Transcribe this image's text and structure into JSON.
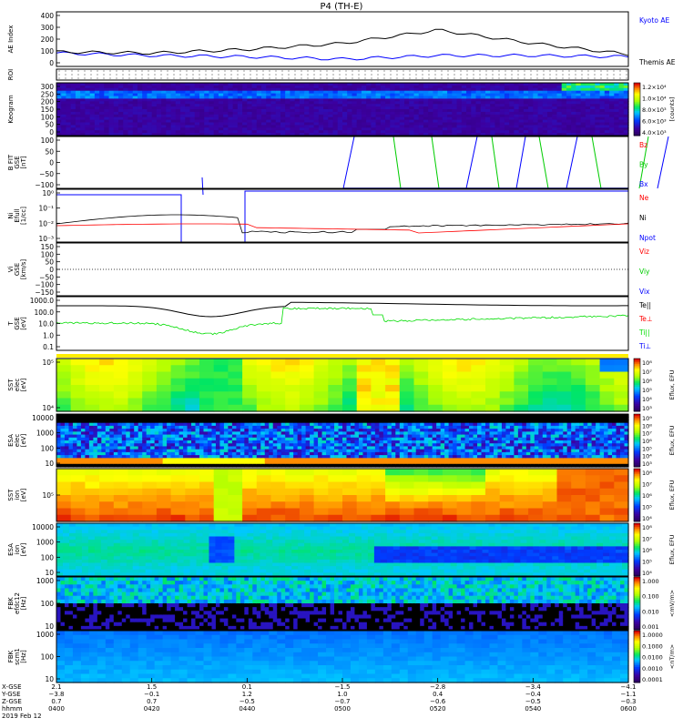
{
  "title": "P4 (TH-E)",
  "colors": {
    "kyoto": "#0000ff",
    "themis": "#000000",
    "bz": "#ff0000",
    "by": "#00cc00",
    "bx": "#0000ff",
    "te_perp": "#ff0000",
    "ti": "#00dd00",
    "ti_perp": "#0000ff"
  },
  "panels": [
    {
      "id": "ae",
      "ylabel": "AE Index",
      "yticks": [
        "400",
        "300",
        "200",
        "100",
        "0"
      ],
      "legend": [
        "Kyoto AE",
        "Themis AE"
      ]
    },
    {
      "id": "roi",
      "ylabel": "ROI",
      "yticks": [],
      "legend": []
    },
    {
      "id": "keogram",
      "ylabel": "Keogram",
      "yticks": [
        "300",
        "250",
        "200",
        "150",
        "100",
        "50",
        "0"
      ],
      "legend": [],
      "colorbar": {
        "labels": [
          "1.2×10⁴",
          "1.0×10⁴",
          "8.0×10³",
          "6.0×10³",
          "4.0×10³"
        ],
        "title": "[counts]"
      }
    },
    {
      "id": "bfield",
      "ylabel": "B FIT\nGSE\n[nT]",
      "yticks": [
        "100",
        "50",
        "0",
        "−50",
        "−100"
      ],
      "legend": [
        "Bz",
        "By",
        "Bx"
      ]
    },
    {
      "id": "density",
      "ylabel": "Ni\nEfull\n[1/cc]",
      "yticks": [
        "10⁰",
        "10⁻¹",
        "10⁻²",
        "10⁻³"
      ],
      "legend": [
        "Ne",
        "Ni",
        "Npot"
      ]
    },
    {
      "id": "velocity",
      "ylabel": "Vi\nGSE\n[km/s]",
      "yticks": [
        "150",
        "100",
        "50",
        "0",
        "−50",
        "−100",
        "−150"
      ],
      "legend": [
        "Viz",
        "Viy",
        "Vix"
      ]
    },
    {
      "id": "temp",
      "ylabel": "T\nGSE\n[eV]",
      "yticks": [
        "1000.0",
        "100.0",
        "10.0",
        "1.0",
        "0.1"
      ],
      "legend": [
        "Te||",
        "Te⊥",
        "Ti||",
        "Ti⊥"
      ]
    },
    {
      "id": "sst_e",
      "ylabel": "SST\nelec\n[eV]",
      "yticks": [
        "10⁵",
        "10⁴"
      ],
      "colorbar": {
        "labels": [
          "10⁸",
          "10⁷",
          "10⁶",
          "10⁵",
          "10⁴",
          "10³"
        ],
        "title": "Eflux, EFU"
      }
    },
    {
      "id": "esa_e",
      "ylabel": "ESA\nelec\n[eV]",
      "yticks": [
        "10000",
        "1000",
        "100",
        "10"
      ],
      "colorbar": {
        "labels": [
          "10⁹",
          "10⁸",
          "10⁷",
          "10⁶",
          "10⁵",
          "10⁴",
          "10³"
        ],
        "title": "Eflux, EFU"
      }
    },
    {
      "id": "sst_i",
      "ylabel": "SST\nion\n[eV]",
      "yticks": [
        "10⁵"
      ],
      "colorbar": {
        "labels": [
          "10⁸",
          "10⁷",
          "10⁶",
          "10⁵",
          "10⁴"
        ],
        "title": "Eflux, EFU"
      }
    },
    {
      "id": "esa_i",
      "ylabel": "ESA\nion\n[eV]",
      "yticks": [
        "10000",
        "1000",
        "100",
        "10"
      ],
      "colorbar": {
        "labels": [
          "10⁸",
          "10⁷",
          "10⁶",
          "10⁵",
          "10⁴"
        ],
        "title": "Eflux, EFU"
      }
    },
    {
      "id": "fbk_e",
      "ylabel": "FBK\nefdc12\n[Hz]",
      "yticks": [
        "1000",
        "100",
        "10"
      ],
      "colorbar": {
        "labels": [
          "1.000",
          "0.100",
          "0.010",
          "0.001"
        ],
        "title": "<mV/m>"
      }
    },
    {
      "id": "fbk_b",
      "ylabel": "FBK\nscm1\n[Hz]",
      "yticks": [
        "1000",
        "100",
        "10"
      ],
      "colorbar": {
        "labels": [
          "1.0000",
          "0.1000",
          "0.0100",
          "0.0010",
          "0.0001"
        ],
        "title": "<nT/m>"
      }
    }
  ],
  "xaxis": {
    "row_labels": [
      "X-GSE",
      "Y-GSE",
      "Z-GSE",
      "hhmm",
      "2019 Feb 12"
    ],
    "ticks": [
      {
        "x": "2.1",
        "y": "−3.8",
        "z": "0.7",
        "t": "0400"
      },
      {
        "x": "1.5",
        "y": "−0.1",
        "z": "0.7",
        "t": "0420"
      },
      {
        "x": "0.1",
        "y": "1.2",
        "z": "−0.5",
        "t": "0440"
      },
      {
        "x": "−1.5",
        "y": "1.0",
        "z": "−0.7",
        "t": "0500"
      },
      {
        "x": "−2.8",
        "y": "0.4",
        "z": "−0.6",
        "t": "0520"
      },
      {
        "x": "−3.4",
        "y": "−0.4",
        "z": "−0.5",
        "t": "0540"
      },
      {
        "x": "−4.1",
        "y": "−1.1",
        "z": "−0.3",
        "t": "0600"
      }
    ]
  },
  "chart_data": [
    {
      "type": "line",
      "id": "ae",
      "title": "P4 (TH-E)",
      "ylabel": "AE Index",
      "ylim": [
        0,
        450
      ],
      "x": [
        "0400",
        "0420",
        "0440",
        "0500",
        "0520",
        "0540",
        "0600"
      ],
      "series": [
        {
          "name": "Kyoto AE",
          "values": [
            110,
            90,
            80,
            60,
            90,
            90,
            80
          ]
        },
        {
          "name": "Themis AE",
          "values": [
            120,
            110,
            140,
            190,
            300,
            190,
            100
          ]
        }
      ]
    },
    {
      "type": "line",
      "id": "bfield",
      "ylabel": "B FIT GSE [nT]",
      "ylim": [
        -100,
        100
      ],
      "series": [
        {
          "name": "Bz"
        },
        {
          "name": "By"
        },
        {
          "name": "Bx"
        }
      ]
    },
    {
      "type": "line",
      "id": "density",
      "ylabel": "Ni Efull [1/cc]",
      "series": [
        {
          "name": "Ne"
        },
        {
          "name": "Ni"
        },
        {
          "name": "Npot"
        }
      ]
    },
    {
      "type": "line",
      "id": "temp",
      "ylabel": "T GSE [eV]",
      "ylim": [
        0.1,
        1000
      ],
      "series": [
        {
          "name": "Te||"
        },
        {
          "name": "Te⊥"
        },
        {
          "name": "Ti||"
        },
        {
          "name": "Ti⊥"
        }
      ]
    },
    {
      "type": "heatmap",
      "id": "spectrograms",
      "panels": [
        "Keogram",
        "SST elec",
        "ESA elec",
        "SST ion",
        "ESA ion",
        "FBK efdc12",
        "FBK scm1"
      ]
    }
  ]
}
